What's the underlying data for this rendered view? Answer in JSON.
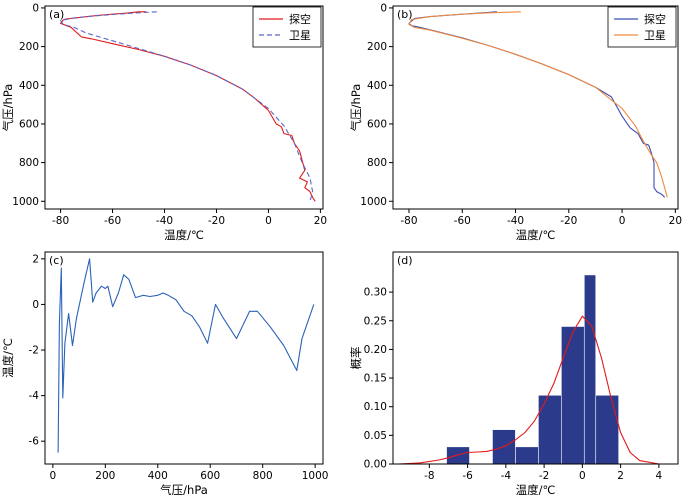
{
  "chart_data": [
    {
      "panel": "(a)",
      "type": "line",
      "xlabel": "温度/℃",
      "ylabel": "气压/hPa",
      "xlim": [
        -86,
        21
      ],
      "ylim": [
        1040,
        -10
      ],
      "y_inverted": true,
      "xticks": [
        -80,
        -60,
        -40,
        -20,
        0,
        20
      ],
      "yticks": [
        0,
        200,
        400,
        600,
        800,
        1000
      ],
      "legend_position": "top-right",
      "series": [
        {
          "name": "探空",
          "color": "#e31a1c",
          "style": "solid",
          "x": [
            -47,
            -50,
            -55,
            -62,
            -68,
            -73,
            -78,
            -79,
            -80,
            -78,
            -76,
            -72,
            -68,
            -60,
            -50,
            -40,
            -30,
            -20,
            -10,
            -5,
            0,
            3,
            5,
            6,
            9,
            10,
            12,
            13,
            14,
            12,
            15,
            14,
            16,
            17,
            18
          ],
          "y": [
            20,
            20,
            27,
            34,
            42,
            50,
            57,
            63,
            80,
            90,
            100,
            150,
            160,
            185,
            215,
            250,
            295,
            350,
            420,
            470,
            530,
            600,
            615,
            650,
            660,
            700,
            740,
            790,
            840,
            880,
            900,
            930,
            950,
            980,
            1000
          ]
        },
        {
          "name": "卫星",
          "color": "#5a67c8",
          "style": "dashed",
          "x": [
            -43,
            -50,
            -58,
            -66,
            -74,
            -80,
            -79,
            -75,
            -70,
            -60,
            -50,
            -40,
            -30,
            -20,
            -10,
            0,
            6,
            10,
            13,
            16,
            17,
            16
          ],
          "y": [
            20,
            25,
            32,
            40,
            50,
            65,
            85,
            100,
            130,
            170,
            210,
            250,
            295,
            350,
            420,
            520,
            610,
            700,
            800,
            880,
            950,
            1000
          ]
        }
      ]
    },
    {
      "panel": "(b)",
      "type": "line",
      "xlabel": "温度/℃",
      "ylabel": "气压/hPa",
      "xlim": [
        -86,
        21
      ],
      "ylim": [
        1040,
        -10
      ],
      "y_inverted": true,
      "xticks": [
        -80,
        -60,
        -40,
        -20,
        0,
        20
      ],
      "yticks": [
        0,
        200,
        400,
        600,
        800,
        1000
      ],
      "legend_position": "top-right",
      "series": [
        {
          "name": "探空",
          "color": "#3b4fb5",
          "style": "solid",
          "x": [
            -47,
            -55,
            -64,
            -72,
            -78,
            -80,
            -79,
            -76,
            -70,
            -60,
            -50,
            -40,
            -30,
            -20,
            -10,
            -4,
            0,
            3,
            6,
            8,
            10,
            11,
            12,
            12,
            13,
            15,
            16
          ],
          "y": [
            20,
            28,
            36,
            45,
            55,
            80,
            92,
            100,
            120,
            155,
            195,
            240,
            290,
            345,
            410,
            460,
            560,
            620,
            650,
            700,
            710,
            750,
            800,
            930,
            950,
            965,
            980
          ]
        },
        {
          "name": "卫星",
          "color": "#f08a3c",
          "style": "solid",
          "x": [
            -38,
            -50,
            -62,
            -72,
            -79,
            -80,
            -78,
            -72,
            -62,
            -50,
            -40,
            -30,
            -20,
            -10,
            0,
            5,
            8,
            11,
            13,
            15,
            17
          ],
          "y": [
            20,
            25,
            34,
            45,
            60,
            85,
            100,
            115,
            150,
            195,
            240,
            290,
            345,
            410,
            520,
            610,
            690,
            760,
            800,
            880,
            980
          ]
        }
      ]
    },
    {
      "panel": "(c)",
      "type": "line",
      "xlabel": "气压/hPa",
      "ylabel": "温度/℃",
      "xlim": [
        -30,
        1030
      ],
      "ylim": [
        -7,
        2.3
      ],
      "xticks": [
        0,
        200,
        400,
        600,
        800,
        1000
      ],
      "yticks": [
        -6,
        -4,
        -2,
        0,
        2
      ],
      "series": [
        {
          "color": "#2b63b8",
          "x": [
            20,
            25,
            32,
            38,
            46,
            60,
            75,
            90,
            105,
            120,
            140,
            152,
            165,
            185,
            200,
            210,
            228,
            250,
            270,
            290,
            315,
            345,
            370,
            400,
            420,
            440,
            470,
            500,
            530,
            560,
            590,
            620,
            650,
            700,
            750,
            780,
            830,
            880,
            930,
            950,
            995
          ],
          "y": [
            -6.5,
            -0.8,
            1.6,
            -4.1,
            -1.7,
            -0.4,
            -1.8,
            -0.6,
            0.2,
            1.0,
            2.0,
            0.1,
            0.5,
            0.8,
            0.7,
            0.8,
            -0.1,
            0.5,
            1.3,
            1.1,
            0.3,
            0.4,
            0.35,
            0.4,
            0.5,
            0.4,
            0.2,
            -0.3,
            -0.5,
            -1.0,
            -1.7,
            0.0,
            -0.6,
            -1.5,
            -0.3,
            -0.3,
            -1.0,
            -1.8,
            -2.9,
            -1.5,
            0.0
          ]
        }
      ]
    },
    {
      "panel": "(d)",
      "type": "bar",
      "xlabel": "温度/℃",
      "ylabel": "概率",
      "xlim": [
        -9.9,
        5.0
      ],
      "ylim": [
        0,
        0.37
      ],
      "xticks": [
        -8,
        -6,
        -4,
        -2,
        0,
        2,
        4
      ],
      "yticks": [
        0.0,
        0.05,
        0.1,
        0.15,
        0.2,
        0.25,
        0.3
      ],
      "bar_color": "#2b3a8a",
      "curve_color": "#e31a1c",
      "bins": [
        {
          "x0": -7.1,
          "x1": -5.9,
          "value": 0.03
        },
        {
          "x0": -5.9,
          "x1": -4.7,
          "value": 0.0
        },
        {
          "x0": -4.7,
          "x1": -3.5,
          "value": 0.06
        },
        {
          "x0": -3.5,
          "x1": -2.3,
          "value": 0.03
        },
        {
          "x0": -2.3,
          "x1": -1.1,
          "value": 0.12
        },
        {
          "x0": -1.1,
          "x1": 0.1,
          "value": 0.24
        },
        {
          "x0": 0.1,
          "x1": 0.7,
          "value": 0.33
        },
        {
          "x0": 0.7,
          "x1": 1.9,
          "value": 0.12
        }
      ],
      "density_curve": {
        "x": [
          -9.6,
          -8.5,
          -7.5,
          -7.0,
          -6.5,
          -6.0,
          -5.5,
          -5.0,
          -4.5,
          -4.0,
          -3.5,
          -3.0,
          -2.5,
          -2.0,
          -1.5,
          -1.0,
          -0.5,
          0.0,
          0.5,
          1.0,
          1.5,
          2.0,
          2.5,
          3.0,
          4.0
        ],
        "y": [
          0.0,
          0.002,
          0.007,
          0.011,
          0.016,
          0.02,
          0.021,
          0.022,
          0.026,
          0.032,
          0.042,
          0.055,
          0.075,
          0.105,
          0.14,
          0.185,
          0.23,
          0.258,
          0.24,
          0.185,
          0.115,
          0.055,
          0.02,
          0.006,
          0.0
        ]
      }
    }
  ]
}
